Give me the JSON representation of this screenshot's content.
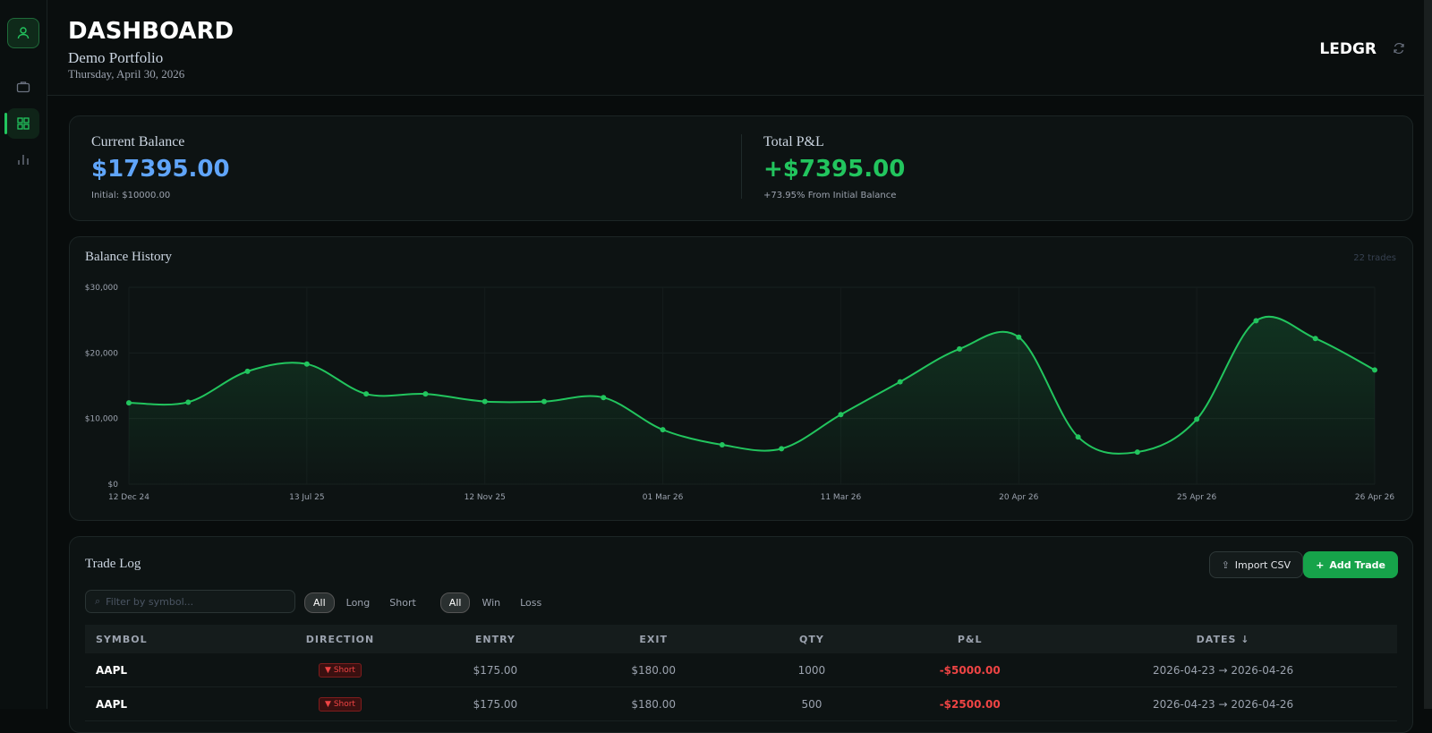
{
  "header": {
    "title": "DASHBOARD",
    "subtitle": "Demo Portfolio",
    "date": "Thursday, April 30, 2026",
    "brand": "LEDGR"
  },
  "summary": {
    "balance_label": "Current Balance",
    "balance": "$17395.00",
    "initial": "Initial: $10000.00",
    "pnl_label": "Total P&L",
    "pnl": "+$7395.00",
    "pnl_note": "+73.95% From Initial Balance"
  },
  "chart_data": {
    "type": "line",
    "title": "Balance History",
    "note": "22 trades",
    "categories": [
      "12 Dec 24",
      null,
      null,
      "13 Jul 25",
      null,
      null,
      "12 Nov 25",
      null,
      null,
      "01 Mar 26",
      null,
      null,
      "11 Mar 26",
      null,
      null,
      "20 Apr 26",
      null,
      null,
      "25 Apr 26",
      null,
      null,
      "26 Apr 26"
    ],
    "values": [
      12400,
      12500,
      17200,
      18300,
      13750,
      13750,
      12600,
      12600,
      13200,
      8300,
      6000,
      5400,
      10600,
      15600,
      20600,
      22400,
      7200,
      4900,
      9900,
      24900,
      22200,
      17395
    ],
    "color": "#22c55e",
    "ylim": [
      0,
      30000
    ],
    "yticks": [
      {
        "value": 0,
        "label": "$0"
      },
      {
        "value": 10000,
        "label": "$10,000"
      },
      {
        "value": 20000,
        "label": "$20,000"
      },
      {
        "value": 30000,
        "label": "$30,000"
      }
    ],
    "grid": true
  },
  "trade_log": {
    "title": "Trade Log",
    "import": "Import CSV",
    "add": "Add Trade",
    "search_placeholder": "Filter by symbol...",
    "direction_filters": [
      "All",
      "Long",
      "Short"
    ],
    "result_filters": [
      "All",
      "Win",
      "Loss"
    ],
    "columns": [
      "SYMBOL",
      "DIRECTION",
      "ENTRY",
      "EXIT",
      "QTY",
      "P&L",
      "DATES ↓"
    ],
    "rows": [
      {
        "symbol": "AAPL",
        "direction": "Short",
        "entry": "$175.00",
        "exit": "$180.00",
        "qty": "1000",
        "pnl": "-$5000.00",
        "open": "2026-04-23",
        "close": "2026-04-26"
      },
      {
        "symbol": "AAPL",
        "direction": "Short",
        "entry": "$175.00",
        "exit": "$180.00",
        "qty": "500",
        "pnl": "-$2500.00",
        "open": "2026-04-23",
        "close": "2026-04-26"
      }
    ]
  }
}
